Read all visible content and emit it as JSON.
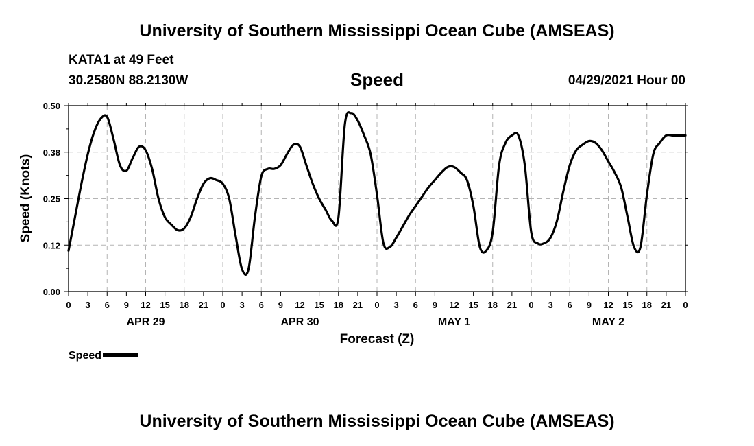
{
  "header": {
    "title": "University of Southern Mississippi Ocean Cube (AMSEAS)",
    "station": "KATA1 at 49 Feet",
    "coords": "30.2580N  88.2130W",
    "plot_title": "Speed",
    "date": "04/29/2021 Hour 00"
  },
  "footer": {
    "title": "University of Southern Mississippi Ocean Cube (AMSEAS)"
  },
  "legend": {
    "label": "Speed"
  },
  "colors": {
    "line": "#000000",
    "grid": "#b4b4b4",
    "background": "#ffffff"
  },
  "chart_data": {
    "type": "line",
    "title": "Speed",
    "xlabel": "Forecast (Z)",
    "ylabel": "Speed (Knots)",
    "xlim": [
      0,
      96
    ],
    "ylim": [
      0,
      0.5
    ],
    "y_ticks": [
      {
        "value": 0.0,
        "label": "0.00"
      },
      {
        "value": 0.125,
        "label": "0.12"
      },
      {
        "value": 0.25,
        "label": "0.25"
      },
      {
        "value": 0.375,
        "label": "0.38"
      },
      {
        "value": 0.5,
        "label": "0.50"
      }
    ],
    "x_tick_labels": [
      "0",
      "3",
      "6",
      "9",
      "12",
      "15",
      "18",
      "21",
      "0",
      "3",
      "6",
      "9",
      "12",
      "15",
      "18",
      "21",
      "0",
      "3",
      "6",
      "9",
      "12",
      "15",
      "18",
      "21",
      "0",
      "3",
      "6",
      "9",
      "12",
      "15",
      "18",
      "21",
      "0"
    ],
    "day_labels": [
      {
        "hour": 12,
        "label": "APR 29"
      },
      {
        "hour": 36,
        "label": "APR 30"
      },
      {
        "hour": 60,
        "label": "MAY 1"
      },
      {
        "hour": 84,
        "label": "MAY 2"
      }
    ],
    "grid": true,
    "series": [
      {
        "name": "Speed",
        "x": [
          0,
          1,
          2,
          3,
          4,
          5,
          6,
          7,
          8,
          9,
          10,
          11,
          12,
          13,
          14,
          15,
          16,
          17,
          18,
          19,
          20,
          21,
          22,
          23,
          24,
          25,
          26,
          27,
          28,
          29,
          30,
          31,
          32,
          33,
          34,
          35,
          36,
          37,
          38,
          39,
          40,
          41,
          42,
          43,
          44,
          45,
          46,
          47,
          48,
          49,
          50,
          51,
          52,
          53,
          54,
          55,
          56,
          57,
          58,
          59,
          60,
          61,
          62,
          63,
          64,
          65,
          66,
          67,
          68,
          69,
          70,
          71,
          72,
          73,
          74,
          75,
          76,
          77,
          78,
          79,
          80,
          81,
          82,
          83,
          84,
          85,
          86,
          87,
          88,
          89,
          90,
          91,
          92,
          93,
          94,
          95,
          96
        ],
        "values": [
          0.11,
          0.2,
          0.29,
          0.37,
          0.43,
          0.465,
          0.47,
          0.41,
          0.34,
          0.325,
          0.36,
          0.39,
          0.38,
          0.33,
          0.25,
          0.2,
          0.18,
          0.165,
          0.17,
          0.2,
          0.25,
          0.29,
          0.305,
          0.3,
          0.29,
          0.25,
          0.15,
          0.06,
          0.06,
          0.2,
          0.31,
          0.33,
          0.33,
          0.34,
          0.37,
          0.395,
          0.39,
          0.34,
          0.29,
          0.25,
          0.22,
          0.19,
          0.2,
          0.45,
          0.48,
          0.46,
          0.42,
          0.37,
          0.26,
          0.13,
          0.12,
          0.145,
          0.175,
          0.205,
          0.23,
          0.255,
          0.28,
          0.3,
          0.32,
          0.335,
          0.335,
          0.32,
          0.3,
          0.23,
          0.12,
          0.11,
          0.16,
          0.34,
          0.4,
          0.42,
          0.42,
          0.34,
          0.16,
          0.13,
          0.13,
          0.145,
          0.19,
          0.27,
          0.34,
          0.38,
          0.395,
          0.405,
          0.4,
          0.38,
          0.35,
          0.32,
          0.28,
          0.2,
          0.12,
          0.12,
          0.26,
          0.37,
          0.4,
          0.42,
          0.42,
          0.42,
          0.42
        ]
      }
    ]
  }
}
